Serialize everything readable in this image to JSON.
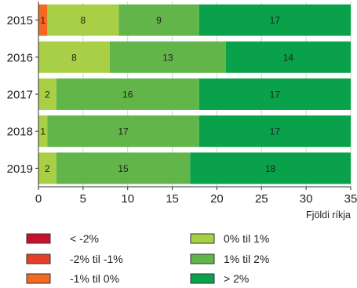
{
  "chart_data": {
    "type": "bar",
    "orientation": "horizontal",
    "stacked": true,
    "categories": [
      "2015",
      "2016",
      "2017",
      "2018",
      "2019"
    ],
    "series": [
      {
        "name": "< -2%",
        "color": "#c8102e",
        "values": [
          0,
          0,
          0,
          0,
          0
        ]
      },
      {
        "name": "-2% til -1%",
        "color": "#e2402a",
        "values": [
          0,
          0,
          0,
          0,
          0
        ]
      },
      {
        "name": "-1% til 0%",
        "color": "#f26a22",
        "values": [
          1,
          0,
          0,
          0,
          0
        ]
      },
      {
        "name": "0% til 1%",
        "color": "#a8cf45",
        "values": [
          8,
          8,
          2,
          1,
          2
        ]
      },
      {
        "name": "1% til 2%",
        "color": "#62b548",
        "values": [
          9,
          13,
          16,
          17,
          15
        ]
      },
      {
        "name": "> 2%",
        "color": "#0aa14b",
        "values": [
          17,
          14,
          17,
          17,
          18
        ]
      }
    ],
    "xlabel": "Fjöldi ríkja",
    "xlim": [
      0,
      35
    ],
    "xticks": [
      0,
      5,
      10,
      15,
      20,
      25,
      30,
      35
    ],
    "grid": "vertical",
    "legend_position": "bottom"
  }
}
